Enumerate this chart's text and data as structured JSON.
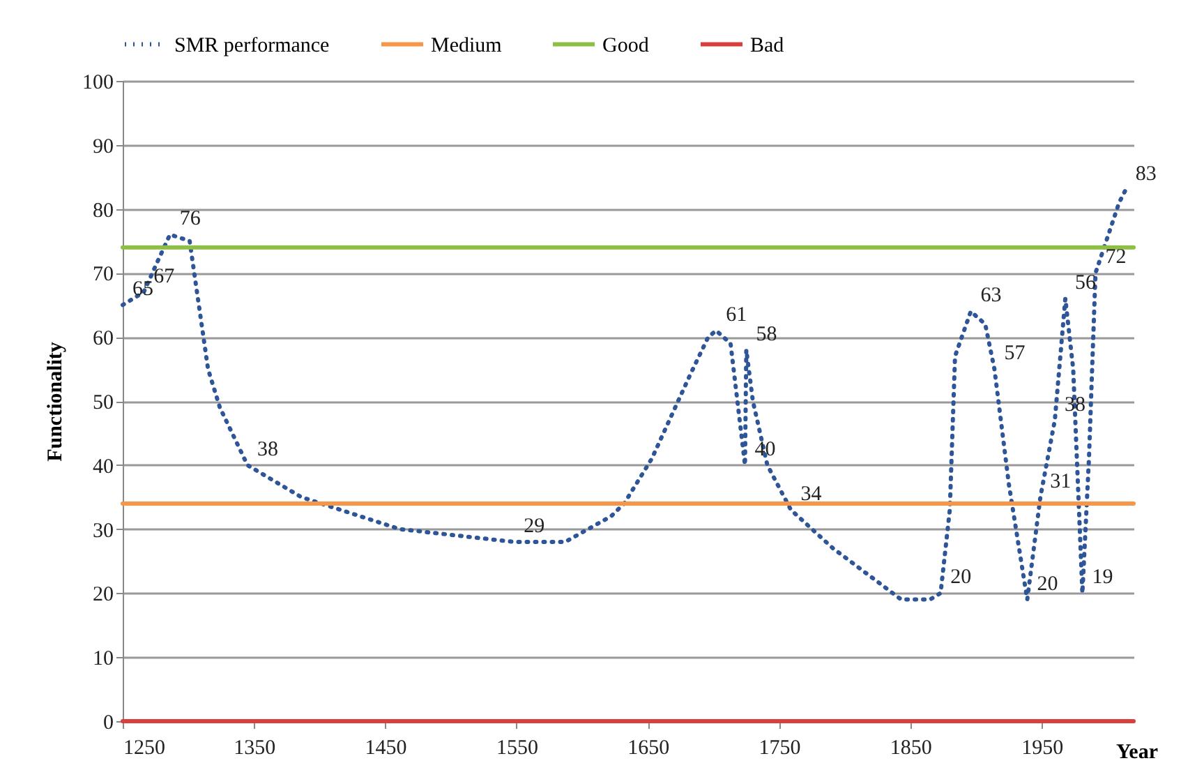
{
  "chart_data": {
    "type": "line",
    "xlabel": "Year",
    "ylabel": "Functionality",
    "xlim": [
      1250,
      2020
    ],
    "xticks": [
      1250,
      1350,
      1450,
      1550,
      1650,
      1750,
      1850,
      1950
    ],
    "ylim": [
      0,
      100
    ],
    "yticks": [
      0,
      10,
      20,
      30,
      40,
      50,
      60,
      70,
      80,
      90,
      100
    ],
    "grid": "y",
    "legend": "top",
    "marker": "none",
    "series": [
      {
        "name": "SMR performance",
        "color": "#2e5597",
        "line_style": "dotted",
        "x": [
          1250,
          1266,
          1277,
          1286,
          1301,
          1308,
          1315,
          1324,
          1345,
          1386,
          1461,
          1548,
          1587,
          1622,
          1632,
          1653,
          1682,
          1696,
          1702,
          1713,
          1724,
          1725,
          1730,
          1741,
          1759,
          1791,
          1843,
          1865,
          1873,
          1880,
          1884,
          1896,
          1907,
          1914,
          1925,
          1939,
          1949,
          1960,
          1968,
          1974,
          1981,
          1986,
          1991,
          2009,
          2014
        ],
        "values": [
          65,
          67,
          72,
          76,
          75,
          65,
          55,
          49,
          40,
          35,
          30,
          28,
          28,
          32,
          34,
          41,
          54,
          60,
          61,
          59,
          40,
          58,
          50,
          40,
          33,
          27,
          19,
          19,
          20,
          33,
          57,
          64,
          62,
          55,
          37,
          19,
          35,
          47,
          66,
          55,
          20,
          41,
          70,
          81,
          83
        ]
      },
      {
        "name": "Medium",
        "color": "#f79646",
        "line_style": "solid",
        "x": [
          1250,
          2020
        ],
        "values": [
          34,
          34
        ]
      },
      {
        "name": "Good",
        "color": "#8cbf44",
        "line_style": "solid",
        "x": [
          1250,
          2020
        ],
        "values": [
          74,
          74
        ]
      },
      {
        "name": "Bad",
        "color": "#d9403b",
        "line_style": "solid",
        "x": [
          1250,
          2020
        ],
        "values": [
          0,
          0
        ]
      }
    ],
    "annotations": [
      {
        "text": "65",
        "x": 1250,
        "y": 65
      },
      {
        "text": "67",
        "x": 1266,
        "y": 67
      },
      {
        "text": "76",
        "x": 1286,
        "y": 76
      },
      {
        "text": "38",
        "x": 1345,
        "y": 40
      },
      {
        "text": "29",
        "x": 1548,
        "y": 28
      },
      {
        "text": "61",
        "x": 1702,
        "y": 61
      },
      {
        "text": "58",
        "x": 1725,
        "y": 58
      },
      {
        "text": "40",
        "x": 1724,
        "y": 40
      },
      {
        "text": "34",
        "x": 1759,
        "y": 33
      },
      {
        "text": "20",
        "x": 1873,
        "y": 20
      },
      {
        "text": "63",
        "x": 1896,
        "y": 64
      },
      {
        "text": "57",
        "x": 1914,
        "y": 55
      },
      {
        "text": "38",
        "x": 1960,
        "y": 47
      },
      {
        "text": "56",
        "x": 1968,
        "y": 66
      },
      {
        "text": "72",
        "x": 1991,
        "y": 70
      },
      {
        "text": "31",
        "x": 1949,
        "y": 35
      },
      {
        "text": "20",
        "x": 1939,
        "y": 19
      },
      {
        "text": "19",
        "x": 1981,
        "y": 20
      },
      {
        "text": "83",
        "x": 2014,
        "y": 83
      }
    ]
  }
}
